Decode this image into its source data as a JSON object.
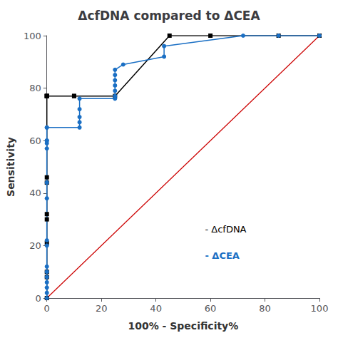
{
  "chart_data": {
    "type": "line",
    "title": "ΔcfDNA compared to ΔCEA",
    "xlabel": "100% - Specificity%",
    "ylabel": "Sensitivity",
    "xlim": [
      0,
      100
    ],
    "ylim": [
      0,
      100
    ],
    "xticks": [
      0,
      20,
      40,
      60,
      80,
      100
    ],
    "yticks": [
      0,
      20,
      40,
      60,
      80,
      100
    ],
    "grid": false,
    "series": [
      {
        "color": "#cc0000",
        "marker": "none",
        "x": [
          0,
          100
        ],
        "values": [
          0,
          100
        ]
      },
      {
        "color": "#000000",
        "marker": "square",
        "x": [
          0,
          0,
          0,
          0,
          0,
          0,
          0,
          0,
          0,
          0,
          0,
          0,
          10,
          10,
          25,
          45,
          60,
          85,
          100
        ],
        "values": [
          0,
          8,
          10,
          21,
          30,
          32,
          44,
          46,
          77,
          77,
          77,
          77,
          77,
          77,
          77,
          100,
          100,
          100,
          100
        ]
      },
      {
        "color": "#1a6fc4",
        "marker": "circle",
        "x": [
          0,
          0,
          0,
          0,
          0,
          0,
          0,
          0,
          0,
          0,
          0,
          0,
          0,
          0,
          0,
          0,
          0,
          12,
          12,
          12,
          12,
          12,
          25,
          25,
          25,
          25,
          25,
          25,
          25,
          28,
          43,
          43,
          72,
          85,
          100
        ],
        "values": [
          0,
          2,
          4,
          6,
          8,
          10,
          12,
          20,
          22,
          38,
          44,
          57,
          59,
          60,
          60,
          65,
          65,
          65,
          67,
          69,
          72,
          76,
          76,
          77,
          79,
          81,
          83,
          85,
          87,
          89,
          92,
          96,
          100,
          100,
          100
        ]
      }
    ],
    "annotations": [
      {
        "text": "- ΔcfDNA",
        "color": "#000000"
      },
      {
        "text": "- ΔCEA",
        "color": "#1a6fc4"
      }
    ]
  }
}
